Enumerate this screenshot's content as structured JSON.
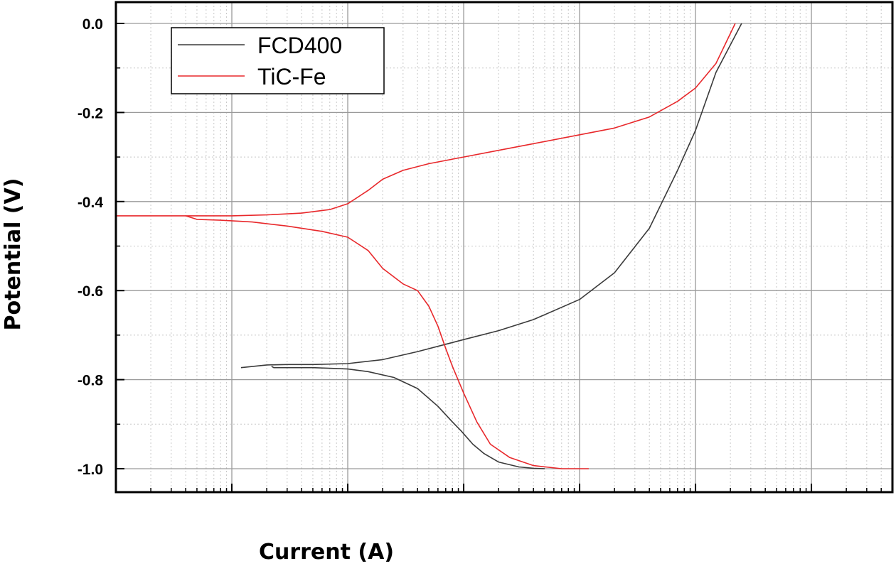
{
  "chart_data": {
    "type": "line",
    "title": "",
    "xlabel": "Current (A)",
    "ylabel": "Potential (V)",
    "x_scale": "log",
    "xlim": [
      1e-07,
      0.5
    ],
    "x_tick_labels": [
      "",
      "",
      "",
      "",
      "",
      ""
    ],
    "ylim": [
      -1.05,
      0.0
    ],
    "y_ticks": [
      0.0,
      -0.2,
      -0.4,
      -0.6,
      -0.8,
      -1.0
    ],
    "y_tick_labels": [
      "0.0",
      "-0.2",
      "-0.4",
      "-0.6",
      "-0.8",
      "-1.0"
    ],
    "grid": true,
    "legend_position": "top-left",
    "colors": {
      "FCD400": "#3a3a3a",
      "TiC-Fe": "#e8282b"
    },
    "series": [
      {
        "name": "FCD400",
        "branches": [
          {
            "x": [
              2.2e-06,
              2.3e-06,
              3e-06,
              5e-06,
              1e-05,
              1.5e-05,
              2.5e-05,
              4e-05,
              6e-05,
              8e-05,
              9.5e-05,
              0.00012,
              0.00015,
              0.0002,
              0.0003,
              0.0004,
              0.0005
            ],
            "y": [
              -0.77,
              -0.773,
              -0.773,
              -0.773,
              -0.776,
              -0.782,
              -0.795,
              -0.82,
              -0.86,
              -0.895,
              -0.915,
              -0.945,
              -0.966,
              -0.985,
              -0.996,
              -0.999,
              -1.0
            ]
          },
          {
            "x": [
              1.2e-06,
              2e-06,
              3e-06,
              5e-06,
              1e-05,
              2e-05,
              4e-05,
              0.0001,
              0.0002,
              0.0004,
              0.001,
              0.002,
              0.004,
              0.007,
              0.01,
              0.015,
              0.025
            ],
            "y": [
              -0.773,
              -0.767,
              -0.766,
              -0.766,
              -0.764,
              -0.755,
              -0.737,
              -0.71,
              -0.69,
              -0.665,
              -0.62,
              -0.56,
              -0.46,
              -0.33,
              -0.24,
              -0.11,
              0.0
            ]
          }
        ]
      },
      {
        "name": "TiC-Fe",
        "branches": [
          {
            "x": [
              4e-07,
              5e-07,
              8e-07,
              1.5e-06,
              3e-06,
              6e-06,
              1e-05,
              1.5e-05,
              2e-05,
              3e-05,
              4e-05,
              5e-05,
              6e-05,
              7e-05,
              8e-05,
              0.0001,
              0.00013,
              0.00017,
              0.00025,
              0.0004,
              0.0007,
              0.001,
              0.0012
            ],
            "y": [
              -0.432,
              -0.44,
              -0.442,
              -0.446,
              -0.455,
              -0.467,
              -0.48,
              -0.51,
              -0.55,
              -0.585,
              -0.6,
              -0.635,
              -0.68,
              -0.73,
              -0.77,
              -0.83,
              -0.895,
              -0.945,
              -0.975,
              -0.993,
              -1.0,
              -1.0,
              -1.0
            ]
          },
          {
            "x": [
              1e-07,
              1e-06,
              2e-06,
              4e-06,
              7e-06,
              1e-05,
              1.5e-05,
              2e-05,
              3e-05,
              5e-05,
              0.0001,
              0.0002,
              0.0004,
              0.001,
              0.002,
              0.004,
              0.007,
              0.01,
              0.015,
              0.022
            ],
            "y": [
              -0.432,
              -0.432,
              -0.43,
              -0.426,
              -0.418,
              -0.405,
              -0.375,
              -0.35,
              -0.33,
              -0.315,
              -0.3,
              -0.285,
              -0.27,
              -0.25,
              -0.235,
              -0.21,
              -0.175,
              -0.145,
              -0.09,
              0.0
            ]
          }
        ]
      }
    ]
  }
}
